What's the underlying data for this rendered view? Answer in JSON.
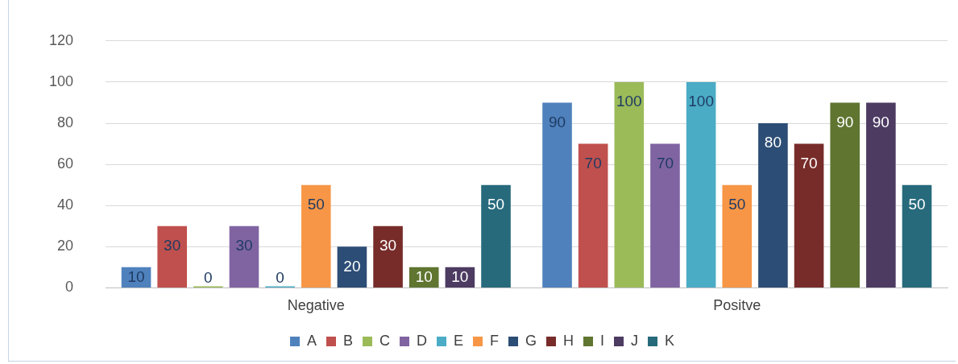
{
  "chart_data": {
    "type": "bar",
    "categories": [
      "Negative",
      "Positve"
    ],
    "series": [
      {
        "name": "A",
        "color": "#4f81bd",
        "values": [
          10,
          90
        ]
      },
      {
        "name": "B",
        "color": "#c0504d",
        "values": [
          30,
          70
        ]
      },
      {
        "name": "C",
        "color": "#9bbb59",
        "values": [
          0,
          100
        ]
      },
      {
        "name": "D",
        "color": "#8064a2",
        "values": [
          30,
          70
        ]
      },
      {
        "name": "E",
        "color": "#4bacc6",
        "values": [
          0,
          100
        ]
      },
      {
        "name": "F",
        "color": "#f79646",
        "values": [
          50,
          50
        ]
      },
      {
        "name": "G",
        "color": "#2c4d75",
        "values": [
          20,
          80
        ]
      },
      {
        "name": "H",
        "color": "#772c2a",
        "values": [
          30,
          70
        ]
      },
      {
        "name": "I",
        "color": "#5f7530",
        "values": [
          10,
          90
        ]
      },
      {
        "name": "J",
        "color": "#4d3b62",
        "values": [
          10,
          90
        ]
      },
      {
        "name": "K",
        "color": "#276a7c",
        "values": [
          50,
          50
        ]
      }
    ],
    "ylim": [
      0,
      120
    ],
    "yticks": [
      0,
      20,
      40,
      60,
      80,
      100,
      120
    ],
    "grid": "y",
    "legend": "bottom",
    "data_labels": true
  }
}
